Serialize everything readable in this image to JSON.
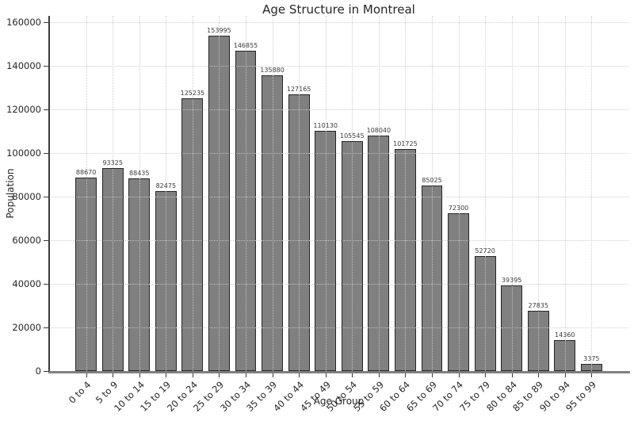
{
  "chart_data": {
    "type": "bar",
    "title": "Age Structure in Montreal",
    "xlabel": "Age Group",
    "ylabel": "Population",
    "categories": [
      "0 to 4",
      "5 to 9",
      "10 to 14",
      "15 to 19",
      "20 to 24",
      "25 to 29",
      "30 to 34",
      "35 to 39",
      "40 to 44",
      "45 to 49",
      "50 to 54",
      "55 to 59",
      "60 to 64",
      "65 to 69",
      "70 to 74",
      "75 to 79",
      "80 to 84",
      "85 to 89",
      "90 to 94",
      "95 to 99"
    ],
    "values": [
      88670,
      93325,
      88435,
      82475,
      125235,
      153995,
      146855,
      135880,
      127165,
      110130,
      105545,
      108040,
      101725,
      85025,
      72300,
      52720,
      39395,
      27835,
      14360,
      3375
    ],
    "ylim": [
      0,
      163000
    ],
    "yticks": [
      0,
      20000,
      40000,
      60000,
      80000,
      100000,
      120000,
      140000,
      160000
    ],
    "bar_value_labels": true,
    "legend": "none",
    "grid": "dotted, both axes, drawn above bars",
    "colors": {
      "background": "#ffffff",
      "bar_fill": "#808080",
      "bar_edge": "#262626",
      "grid": "#c9c9c9",
      "text": "#262626",
      "value_label": "#3a3a3a",
      "spine_left": "#3b3b3b",
      "spine_bottom": "#808080"
    }
  }
}
